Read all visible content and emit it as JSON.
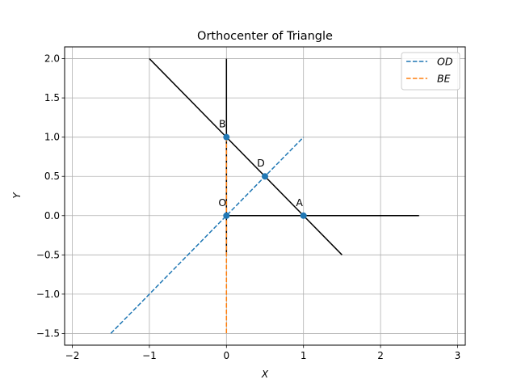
{
  "chart_data": {
    "type": "line",
    "title": "Orthocenter of Triangle",
    "xlabel": "X",
    "ylabel": "Y",
    "xlim": [
      -2.1,
      3.1
    ],
    "ylim": [
      -1.65,
      2.15
    ],
    "xticks": [
      -2,
      -1,
      0,
      1,
      2,
      3
    ],
    "xtick_labels": [
      "−2",
      "−1",
      "0",
      "1",
      "2",
      "3"
    ],
    "yticks": [
      -1.5,
      -1.0,
      -0.5,
      0.0,
      0.5,
      1.0,
      1.5,
      2.0
    ],
    "ytick_labels": [
      "−1.5",
      "−1.0",
      "−0.5",
      "0.0",
      "0.5",
      "1.0",
      "1.5",
      "2.0"
    ],
    "grid": true,
    "legend_position": "top-right",
    "lines": [
      {
        "x": [
          0,
          2.5
        ],
        "y": [
          0,
          0
        ],
        "color": "#000000",
        "style": "solid"
      },
      {
        "x": [
          0,
          0
        ],
        "y": [
          -0.5,
          2.0
        ],
        "color": "#000000",
        "style": "solid"
      },
      {
        "x": [
          -1,
          1.5
        ],
        "y": [
          2.0,
          -0.5
        ],
        "color": "#000000",
        "style": "solid"
      }
    ],
    "series": [
      {
        "name": "OD",
        "x": [
          -1.5,
          1.0
        ],
        "y": [
          -1.5,
          1.0
        ],
        "color": "#1f77b4",
        "style": "dashed"
      },
      {
        "name": "BE",
        "x": [
          0,
          0
        ],
        "y": [
          1.0,
          -1.5
        ],
        "color": "#ff7f0e",
        "style": "dashed"
      }
    ],
    "points": [
      {
        "label": "B",
        "x": 0,
        "y": 1
      },
      {
        "label": "D",
        "x": 0.5,
        "y": 0.5
      },
      {
        "label": "O",
        "x": 0,
        "y": 0
      },
      {
        "label": "A",
        "x": 1,
        "y": 0
      }
    ],
    "point_color": "#1f77b4"
  }
}
